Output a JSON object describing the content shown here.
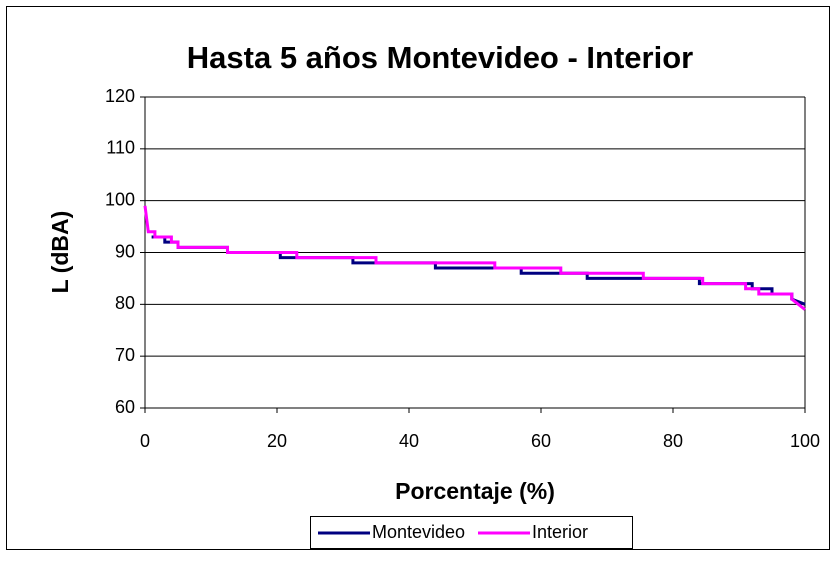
{
  "chart_data": {
    "type": "line",
    "title": "Hasta 5 años Montevideo - Interior",
    "x_label": "Porcentaje (%)",
    "y_label": "L (dBA)",
    "xlim": [
      0,
      100
    ],
    "xticks": [
      0,
      20,
      40,
      60,
      80,
      100
    ],
    "ylim": [
      60,
      120
    ],
    "yticks": [
      60,
      70,
      80,
      90,
      100,
      110,
      120
    ],
    "grid": true,
    "legend": "bottom",
    "series": [
      {
        "name": "Montevideo",
        "color": "#000080",
        "x": [
          1,
          3,
          3,
          5,
          5,
          12.5,
          12.5,
          20.5,
          20.5,
          31.5,
          31.5,
          44,
          44,
          57,
          57,
          67,
          67,
          84,
          84,
          92,
          92,
          95,
          95,
          98,
          98,
          100
        ],
        "values": [
          93,
          93,
          92,
          92,
          91,
          91,
          90,
          90,
          89,
          89,
          88,
          88,
          87,
          87,
          86,
          86,
          85,
          85,
          84,
          84,
          83,
          83,
          82,
          82,
          81,
          80
        ]
      },
      {
        "name": "Interior",
        "color": "#ff00ff",
        "x": [
          0,
          0.5,
          1.5,
          1.5,
          4,
          4,
          5,
          5,
          12.5,
          12.5,
          23,
          23,
          35,
          35,
          53,
          53,
          63,
          63,
          75.5,
          75.5,
          84.5,
          84.5,
          91,
          91,
          93,
          93,
          98,
          98,
          100
        ],
        "values": [
          99,
          94,
          94,
          93,
          93,
          92,
          92,
          91,
          91,
          90,
          90,
          89,
          89,
          88,
          88,
          87,
          87,
          86,
          86,
          85,
          85,
          84,
          84,
          83,
          83,
          82,
          82,
          81,
          79
        ]
      }
    ]
  }
}
